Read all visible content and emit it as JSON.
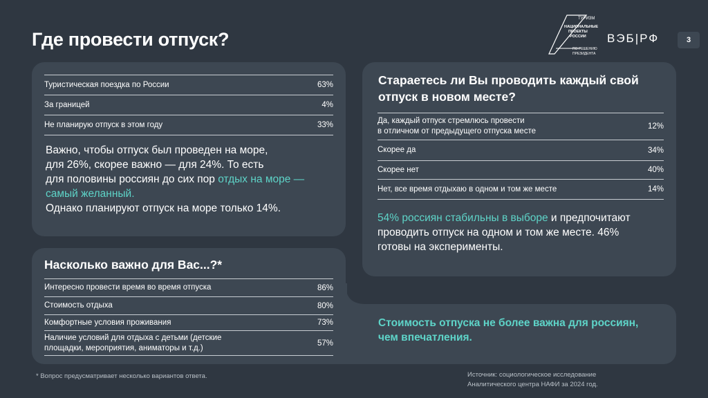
{
  "title": "Где провести отпуск?",
  "page_number": "3",
  "logo": {
    "line1": "ТУРИЗМ",
    "line2": "НАЦИОНАЛЬНЫЕ",
    "line3": "ПРОЕКТЫ",
    "line4": "РОССИИ",
    "line5": "ПО РЕШЕНИЮ",
    "line6": "ПРЕЗИДЕНТА",
    "brand": "ВЭБ|РФ"
  },
  "trip_table": [
    {
      "label": "Туристическая поездка по России",
      "value": "63%"
    },
    {
      "label": "За границей",
      "value": "4%"
    },
    {
      "label": "Не планирую отпуск в этом году",
      "value": "33%"
    }
  ],
  "sea_text": {
    "p1": "Важно, чтобы отпуск был проведен на море,",
    "p2": "для 26%, скорее важно — для 24%. То есть",
    "p3": "для половины россиян до сих пор ",
    "p3_hl": "отдых на море —",
    "p4_hl": "самый желанный.",
    "p5": "Однако планируют отпуск на море только 14%."
  },
  "importance": {
    "heading": "Насколько важно для Вас...?*",
    "rows": [
      {
        "label": "Интересно провести время во время отпуска",
        "value": "86%"
      },
      {
        "label": "Стоимость отдыха",
        "value": "80%"
      },
      {
        "label": "Комфортные условия проживания",
        "value": "73%"
      },
      {
        "label1": "Наличие условий для отдыха с детьми (детские",
        "label2": "площадки, мероприятия, аниматоры и т.д.)",
        "value": "57%"
      }
    ]
  },
  "new_place": {
    "heading1": "Стараетесь ли Вы проводить каждый свой",
    "heading2": "отпуск в новом месте?",
    "rows": [
      {
        "label1": "Да, каждый отпуск стремлюсь провести",
        "label2": "в отличном от предыдущего отпуска месте",
        "value": "12%"
      },
      {
        "label": "Скорее да",
        "value": "34%"
      },
      {
        "label": "Скорее нет",
        "value": "40%"
      },
      {
        "label": "Нет, все время отдыхаю в одном и том же месте",
        "value": "14%"
      }
    ],
    "text_hl": "54% россиян стабильны в выборе",
    "text1": " и предпочитают",
    "text2": "проводить отпуск на одном и том же месте. 46%",
    "text3": "готовы на эксперименты."
  },
  "cost_text": {
    "line1": "Стоимость отпуска не более важна для россиян,",
    "line2": "чем впечатления."
  },
  "footnote": "* Вопрос предусматривает несколько вариантов ответа.",
  "source": {
    "line1": "Источник: социологическое исследование",
    "line2": "Аналитического центра НАФИ за 2024 год."
  }
}
